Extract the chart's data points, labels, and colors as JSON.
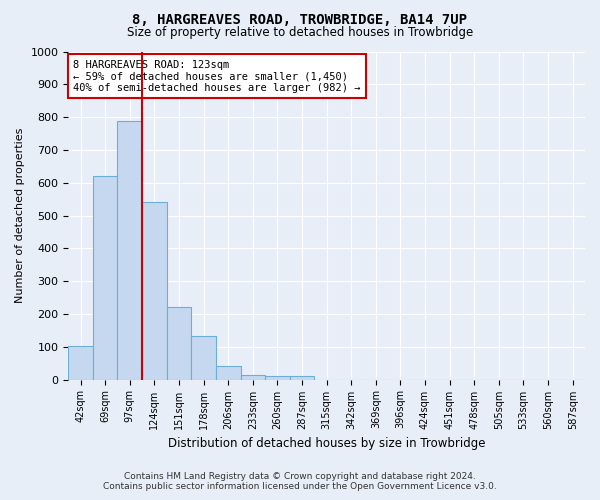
{
  "title": "8, HARGREAVES ROAD, TROWBRIDGE, BA14 7UP",
  "subtitle": "Size of property relative to detached houses in Trowbridge",
  "xlabel": "Distribution of detached houses by size in Trowbridge",
  "ylabel": "Number of detached properties",
  "bar_color": "#c5d8f0",
  "bar_edge_color": "#6baed6",
  "background_color": "#e8eef8",
  "grid_color": "#ffffff",
  "categories": [
    "42sqm",
    "69sqm",
    "97sqm",
    "124sqm",
    "151sqm",
    "178sqm",
    "206sqm",
    "233sqm",
    "260sqm",
    "287sqm",
    "315sqm",
    "342sqm",
    "369sqm",
    "396sqm",
    "424sqm",
    "451sqm",
    "478sqm",
    "505sqm",
    "533sqm",
    "560sqm",
    "587sqm"
  ],
  "values": [
    103,
    622,
    787,
    540,
    222,
    133,
    42,
    15,
    10,
    11,
    0,
    0,
    0,
    0,
    0,
    0,
    0,
    0,
    0,
    0,
    0
  ],
  "ylim": [
    0,
    1000
  ],
  "yticks": [
    0,
    100,
    200,
    300,
    400,
    500,
    600,
    700,
    800,
    900,
    1000
  ],
  "property_line_color": "#cc0000",
  "annotation_line1": "8 HARGREAVES ROAD: 123sqm",
  "annotation_line2": "← 59% of detached houses are smaller (1,450)",
  "annotation_line3": "40% of semi-detached houses are larger (982) →",
  "annotation_box_color": "#cc0000",
  "footer_line1": "Contains HM Land Registry data © Crown copyright and database right 2024.",
  "footer_line2": "Contains public sector information licensed under the Open Government Licence v3.0."
}
